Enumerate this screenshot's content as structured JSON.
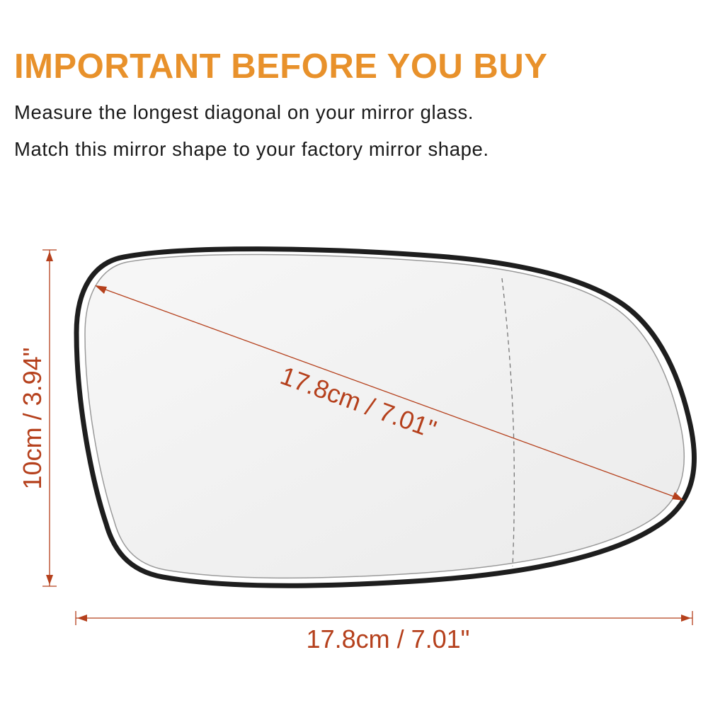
{
  "headline": "IMPORTANT BEFORE YOU BUY",
  "instructions": [
    "Measure the longest diagonal on your mirror glass.",
    "Match this mirror shape to your factory mirror shape."
  ],
  "dimensions": {
    "diagonal": "17.8cm / 7.01\"",
    "width": "17.8cm / 7.01\"",
    "height": "10cm / 3.94\""
  },
  "colors": {
    "headline": "#e8912b",
    "body_text": "#1a1a1a",
    "dimension": "#b5401c",
    "mirror_frame": "#1e1e1e",
    "glass": "#f2f2f2",
    "heating_divider": "#777777"
  }
}
